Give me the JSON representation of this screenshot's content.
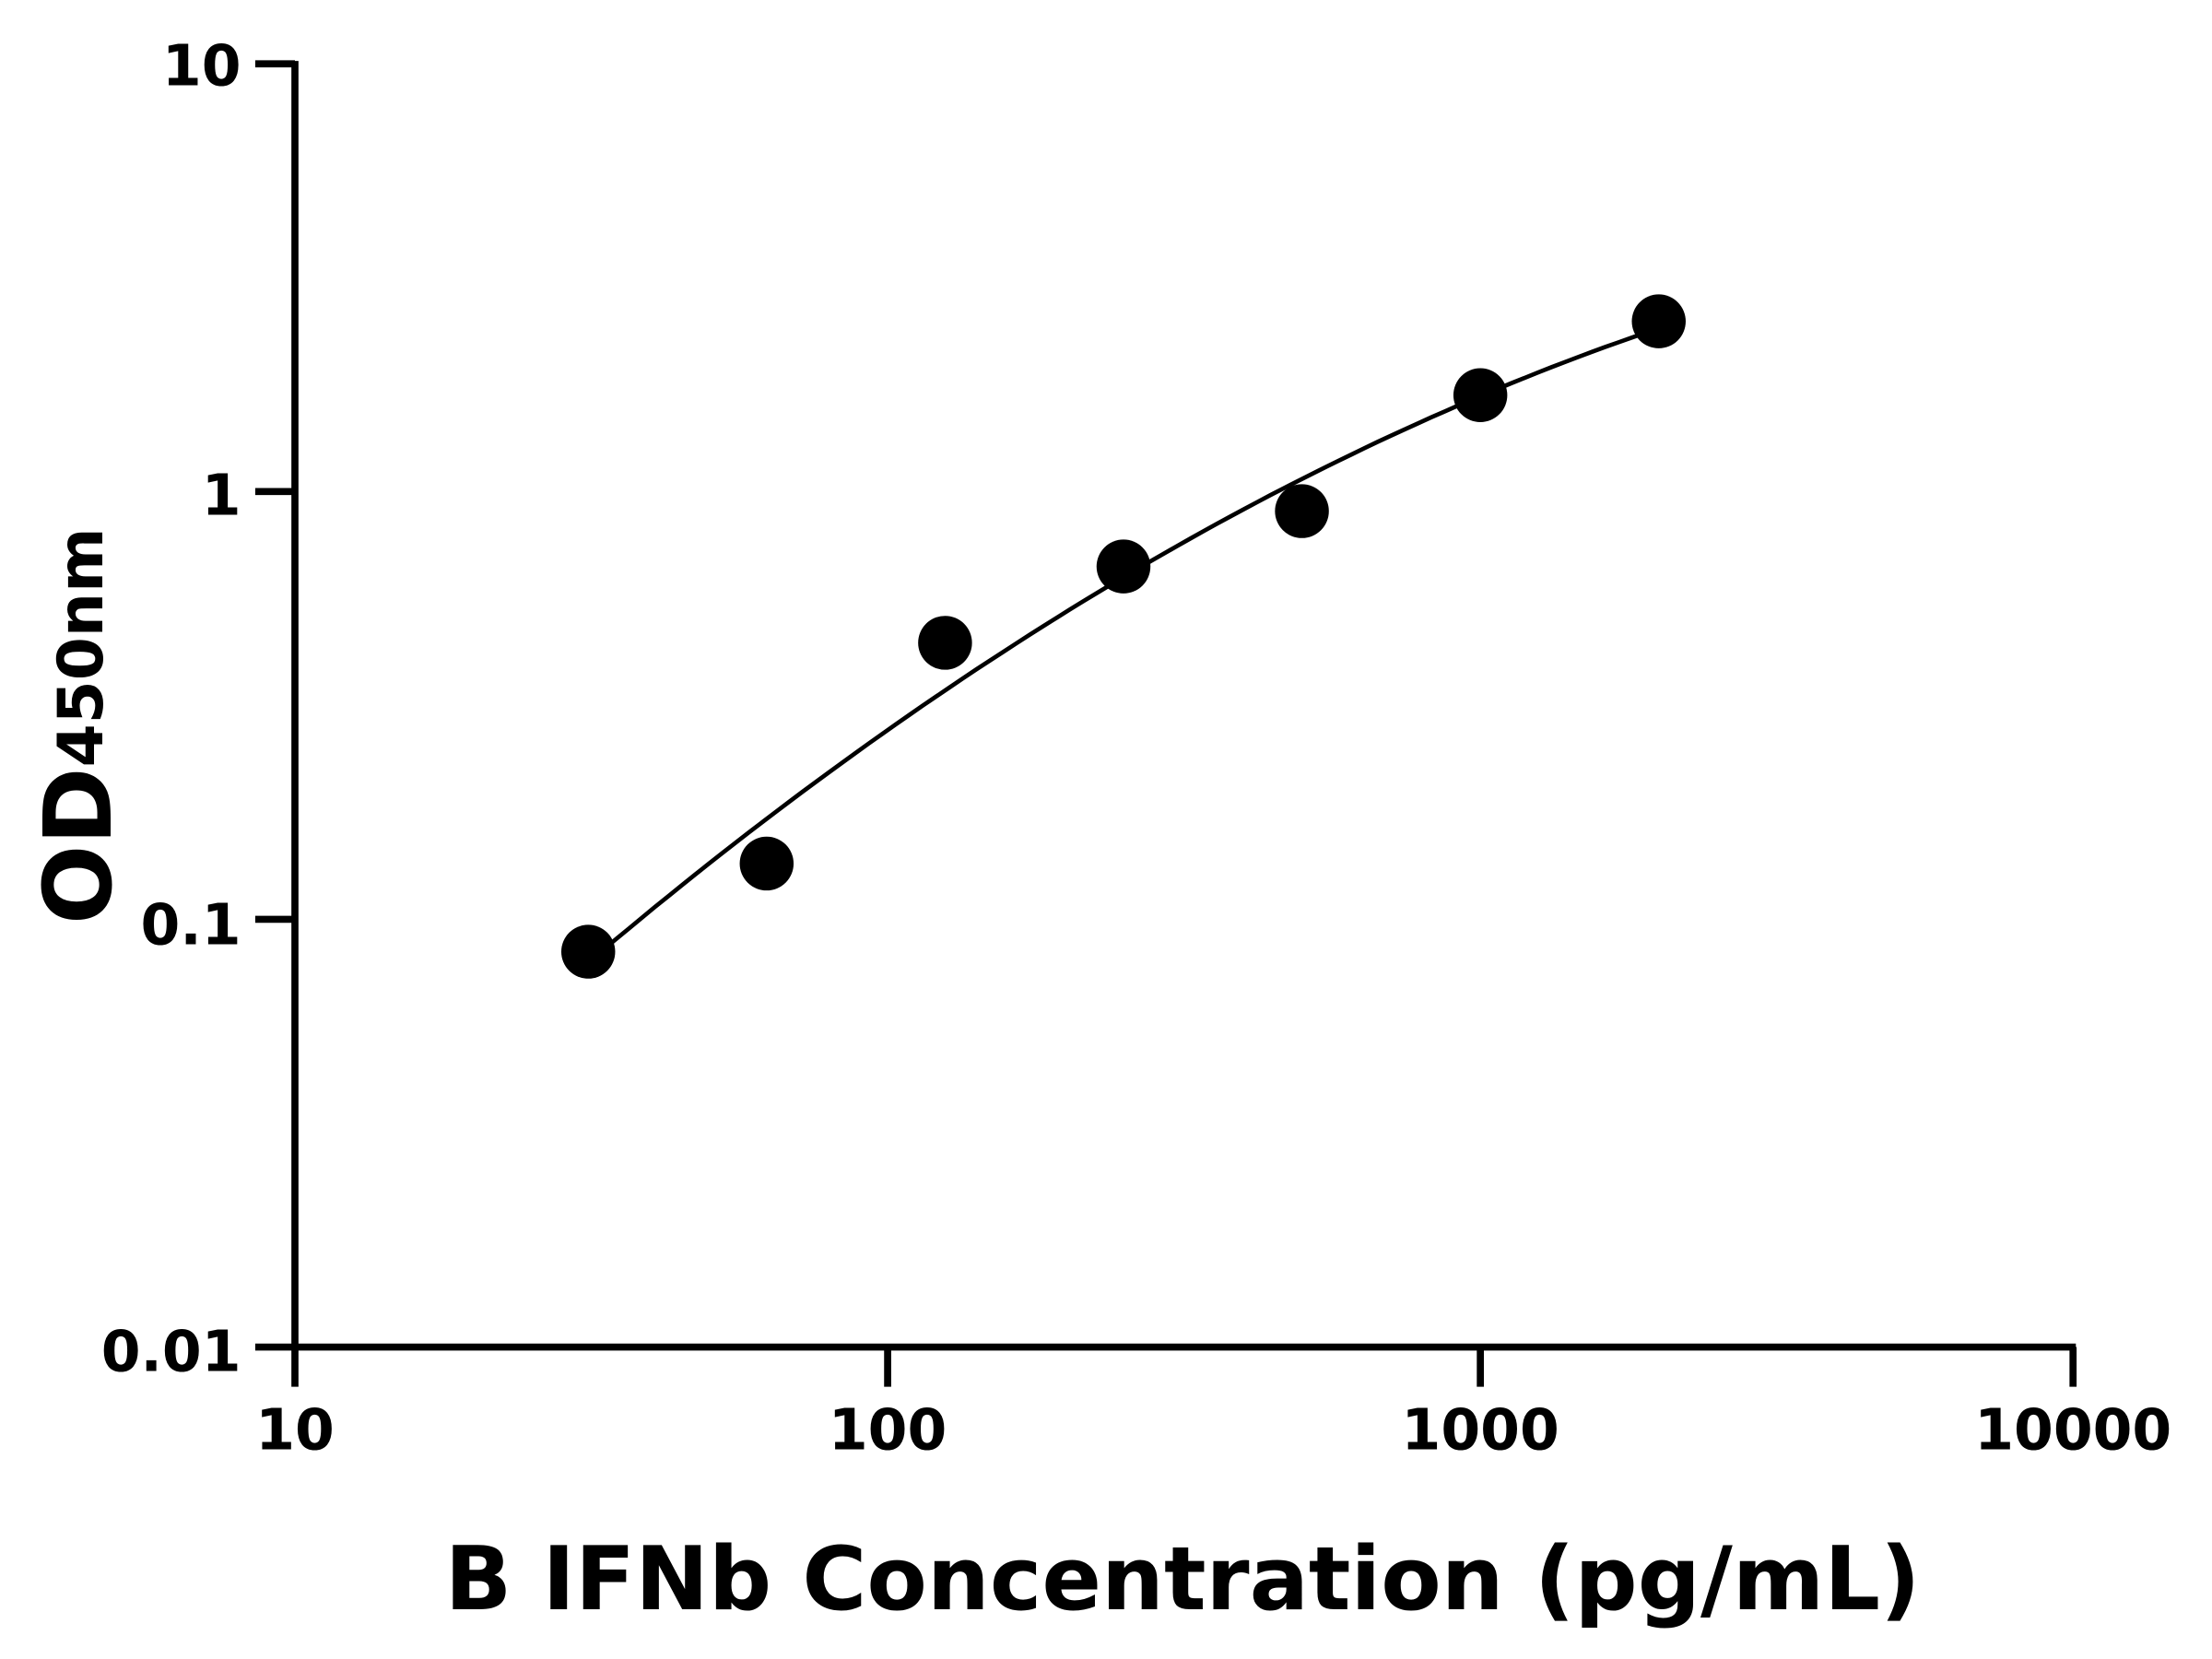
{
  "chart_data": {
    "type": "scatter",
    "title": "",
    "xlabel": "B IFNb Concentration (pg/mL)",
    "ylabel": {
      "main": "OD",
      "subscript": "450nm"
    },
    "xscale": "log",
    "yscale": "log",
    "xlim": [
      10,
      10000
    ],
    "ylim": [
      0.01,
      10
    ],
    "xticks": [
      "10",
      "100",
      "1000",
      "10000"
    ],
    "yticks": [
      "0.01",
      "0.1",
      "1",
      "10"
    ],
    "grid": false,
    "fit_curve": true,
    "marker_color": "#000000",
    "points": [
      {
        "x": 31.25,
        "y": 0.084
      },
      {
        "x": 62.5,
        "y": 0.135
      },
      {
        "x": 125,
        "y": 0.443
      },
      {
        "x": 250,
        "y": 0.668
      },
      {
        "x": 500,
        "y": 0.9
      },
      {
        "x": 1000,
        "y": 1.68
      },
      {
        "x": 2000,
        "y": 2.5
      }
    ]
  }
}
